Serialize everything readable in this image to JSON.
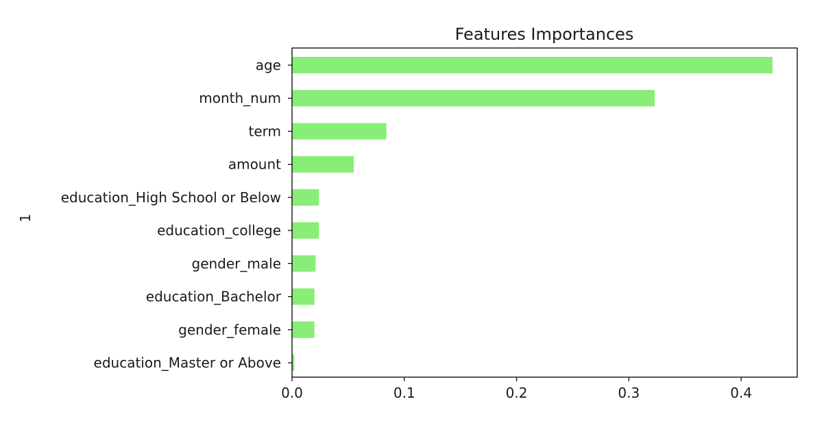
{
  "chart_data": {
    "type": "bar",
    "orientation": "horizontal",
    "title": "Features Importances",
    "xlabel": "",
    "ylabel": "1",
    "categories": [
      "age",
      "month_num",
      "term",
      "amount",
      "education_High School or Below",
      "education_college",
      "gender_male",
      "education_Bachelor",
      "gender_female",
      "education_Master or Above"
    ],
    "values": [
      0.428,
      0.323,
      0.084,
      0.055,
      0.024,
      0.024,
      0.021,
      0.02,
      0.02,
      0.002
    ],
    "xlim": [
      0.0,
      0.45
    ],
    "xticks": [
      0.0,
      0.1,
      0.2,
      0.3,
      0.4
    ],
    "xtick_labels": [
      "0.0",
      "0.1",
      "0.2",
      "0.3",
      "0.4"
    ],
    "bar_color": "#88ee77",
    "grid": false,
    "legend": "none"
  }
}
